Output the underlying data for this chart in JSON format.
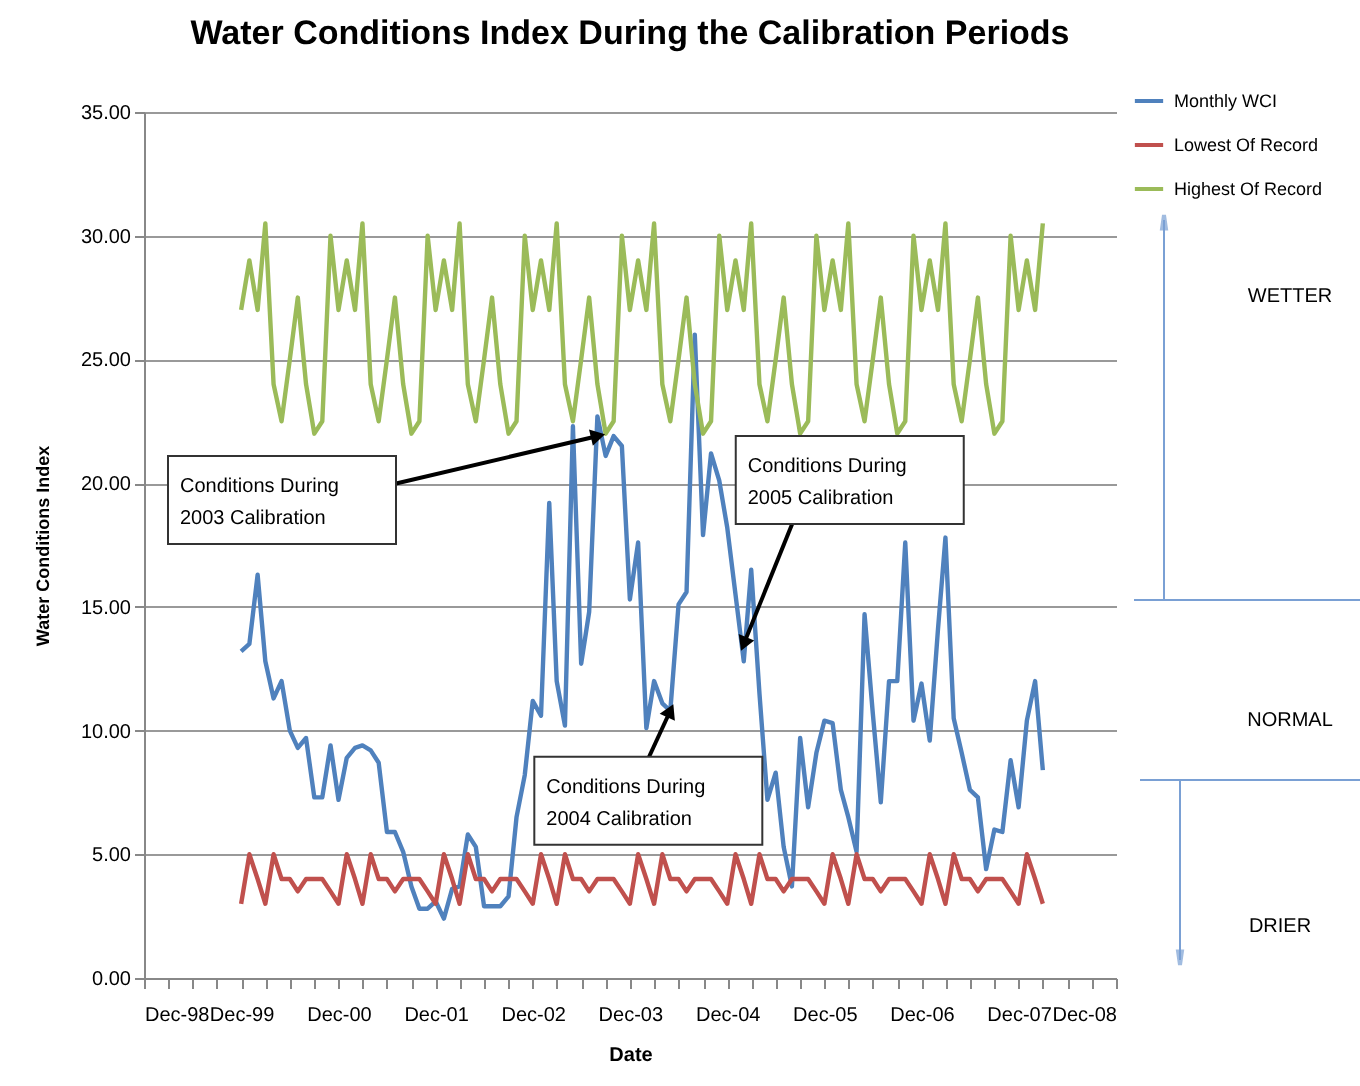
{
  "chart_data": {
    "type": "line",
    "title": "Water Conditions Index During the Calibration Periods",
    "xlabel": "Date",
    "ylabel": "Water Conditions Index",
    "x": [
      "1999-12",
      "2000-01",
      "2000-02",
      "2000-03",
      "2000-04",
      "2000-05",
      "2000-06",
      "2000-07",
      "2000-08",
      "2000-09",
      "2000-10",
      "2000-11",
      "2000-12",
      "2001-01",
      "2001-02",
      "2001-03",
      "2001-04",
      "2001-05",
      "2001-06",
      "2001-07",
      "2001-08",
      "2001-09",
      "2001-10",
      "2001-11",
      "2001-12",
      "2002-01",
      "2002-02",
      "2002-03",
      "2002-04",
      "2002-05",
      "2002-06",
      "2002-07",
      "2002-08",
      "2002-09",
      "2002-10",
      "2002-11",
      "2002-12",
      "2003-01",
      "2003-02",
      "2003-03",
      "2003-04",
      "2003-05",
      "2003-06",
      "2003-07",
      "2003-08",
      "2003-09",
      "2003-10",
      "2003-11",
      "2003-12",
      "2004-01",
      "2004-02",
      "2004-03",
      "2004-04",
      "2004-05",
      "2004-06",
      "2004-07",
      "2004-08",
      "2004-09",
      "2004-10",
      "2004-11",
      "2004-12",
      "2005-01",
      "2005-02",
      "2005-03",
      "2005-04",
      "2005-05",
      "2005-06",
      "2005-07",
      "2005-08",
      "2005-09",
      "2005-10",
      "2005-11",
      "2005-12",
      "2006-01",
      "2006-02",
      "2006-03",
      "2006-04",
      "2006-05",
      "2006-06",
      "2006-07",
      "2006-08",
      "2006-09",
      "2006-10",
      "2006-11",
      "2006-12",
      "2007-01",
      "2007-02",
      "2007-03",
      "2007-04",
      "2007-05",
      "2007-06",
      "2007-07",
      "2007-08",
      "2007-09",
      "2007-10",
      "2007-11",
      "2007-12",
      "2008-01",
      "2008-02",
      "2008-03"
    ],
    "series": [
      {
        "name": "Monthly WCI",
        "color": "#4f81bd",
        "values": [
          13.2,
          13.5,
          16.3,
          12.8,
          11.3,
          12.0,
          10.0,
          9.3,
          9.7,
          7.3,
          7.3,
          9.4,
          7.2,
          8.9,
          9.3,
          9.4,
          9.2,
          8.7,
          5.9,
          5.9,
          5.1,
          3.7,
          2.8,
          2.8,
          3.1,
          2.4,
          3.6,
          3.7,
          5.8,
          5.3,
          2.9,
          2.9,
          2.9,
          3.3,
          6.5,
          8.2,
          11.2,
          10.6,
          19.2,
          12.0,
          10.2,
          22.3,
          12.7,
          14.8,
          22.7,
          21.1,
          21.9,
          21.5,
          15.3,
          17.6,
          10.1,
          12.0,
          11.1,
          10.8,
          15.1,
          15.6,
          26.0,
          17.9,
          21.2,
          20.1,
          18.2,
          15.5,
          12.8,
          16.5,
          11.5,
          7.2,
          8.3,
          5.3,
          3.7,
          9.7,
          6.9,
          9.1,
          10.4,
          10.3,
          7.6,
          6.5,
          5.1,
          14.7,
          10.7,
          7.1,
          12.0,
          12.0,
          17.6,
          10.4,
          11.9,
          9.6,
          14.1,
          17.8,
          10.5,
          9.1,
          7.6,
          7.3,
          4.4,
          6.0,
          5.9,
          8.8,
          6.9,
          10.4,
          12.0,
          8.4
        ]
      },
      {
        "name": "Lowest Of Record",
        "color": "#c0504d",
        "values": [
          3,
          5,
          4,
          3,
          5,
          4,
          4,
          3.5,
          4,
          4,
          4,
          3.5,
          3,
          5,
          4,
          3,
          5,
          4,
          4,
          3.5,
          4,
          4,
          4,
          3.5,
          3,
          5,
          4,
          3,
          5,
          4,
          4,
          3.5,
          4,
          4,
          4,
          3.5,
          3,
          5,
          4,
          3,
          5,
          4,
          4,
          3.5,
          4,
          4,
          4,
          3.5,
          3,
          5,
          4,
          3,
          5,
          4,
          4,
          3.5,
          4,
          4,
          4,
          3.5,
          3,
          5,
          4,
          3,
          5,
          4,
          4,
          3.5,
          4,
          4,
          4,
          3.5,
          3,
          5,
          4,
          3,
          5,
          4,
          4,
          3.5,
          4,
          4,
          4,
          3.5,
          3,
          5,
          4,
          3,
          5,
          4,
          4,
          3.5,
          4,
          4,
          4,
          3.5,
          3,
          5,
          4,
          3
        ]
      },
      {
        "name": "Highest Of Record",
        "color": "#9bbb59",
        "values": [
          27,
          29,
          27,
          30.5,
          24,
          22.5,
          25,
          27.5,
          24,
          22,
          22.5,
          30,
          27,
          29,
          27,
          30.5,
          24,
          22.5,
          25,
          27.5,
          24,
          22,
          22.5,
          30,
          27,
          29,
          27,
          30.5,
          24,
          22.5,
          25,
          27.5,
          24,
          22,
          22.5,
          30,
          27,
          29,
          27,
          30.5,
          24,
          22.5,
          25,
          27.5,
          24,
          22,
          22.5,
          30,
          27,
          29,
          27,
          30.5,
          24,
          22.5,
          25,
          27.5,
          24,
          22,
          22.5,
          30,
          27,
          29,
          27,
          30.5,
          24,
          22.5,
          25,
          27.5,
          24,
          22,
          22.5,
          30,
          27,
          29,
          27,
          30.5,
          24,
          22.5,
          25,
          27.5,
          24,
          22,
          22.5,
          30,
          27,
          29,
          27,
          30.5,
          24,
          22.5,
          25,
          27.5,
          24,
          22,
          22.5,
          30,
          27,
          29,
          27,
          30.5
        ]
      }
    ],
    "xlim": [
      "1998-12",
      "2008-12"
    ],
    "xticks": [
      {
        "value": "1998-12",
        "label": "Dec-98"
      },
      {
        "value": "1999-03",
        "label": null
      },
      {
        "value": "1999-06",
        "label": null
      },
      {
        "value": "1999-09",
        "label": null
      },
      {
        "value": "1999-12",
        "label": "Dec-99"
      },
      {
        "value": "2000-03",
        "label": null
      },
      {
        "value": "2000-06",
        "label": null
      },
      {
        "value": "2000-09",
        "label": null
      },
      {
        "value": "2000-12",
        "label": "Dec-00"
      },
      {
        "value": "2001-03",
        "label": null
      },
      {
        "value": "2001-06",
        "label": null
      },
      {
        "value": "2001-09",
        "label": null
      },
      {
        "value": "2001-12",
        "label": "Dec-01"
      },
      {
        "value": "2002-03",
        "label": null
      },
      {
        "value": "2002-06",
        "label": null
      },
      {
        "value": "2002-09",
        "label": null
      },
      {
        "value": "2002-12",
        "label": "Dec-02"
      },
      {
        "value": "2003-03",
        "label": null
      },
      {
        "value": "2003-06",
        "label": null
      },
      {
        "value": "2003-09",
        "label": null
      },
      {
        "value": "2003-12",
        "label": "Dec-03"
      },
      {
        "value": "2004-03",
        "label": null
      },
      {
        "value": "2004-06",
        "label": null
      },
      {
        "value": "2004-09",
        "label": null
      },
      {
        "value": "2004-12",
        "label": "Dec-04"
      },
      {
        "value": "2005-03",
        "label": null
      },
      {
        "value": "2005-06",
        "label": null
      },
      {
        "value": "2005-09",
        "label": null
      },
      {
        "value": "2005-12",
        "label": "Dec-05"
      },
      {
        "value": "2006-03",
        "label": null
      },
      {
        "value": "2006-06",
        "label": null
      },
      {
        "value": "2006-09",
        "label": null
      },
      {
        "value": "2006-12",
        "label": "Dec-06"
      },
      {
        "value": "2007-03",
        "label": null
      },
      {
        "value": "2007-06",
        "label": null
      },
      {
        "value": "2007-09",
        "label": null
      },
      {
        "value": "2007-12",
        "label": "Dec-07"
      },
      {
        "value": "2008-03",
        "label": null
      },
      {
        "value": "2008-06",
        "label": null
      },
      {
        "value": "2008-09",
        "label": null
      },
      {
        "value": "2008-12",
        "label": "Dec-08"
      }
    ],
    "ylim": [
      0,
      35
    ],
    "yticks": [
      {
        "value": 0,
        "label": "0.00"
      },
      {
        "value": 5,
        "label": "5.00"
      },
      {
        "value": 10,
        "label": "10.00"
      },
      {
        "value": 15,
        "label": "15.00"
      },
      {
        "value": 20,
        "label": "20.00"
      },
      {
        "value": 25,
        "label": "25.00"
      },
      {
        "value": 30,
        "label": "30.00"
      },
      {
        "value": 35,
        "label": "35.00"
      }
    ],
    "grid": "y",
    "legend": "top right",
    "annotations": [
      "Conditions During\n2003 Calibration",
      {
        "text": "Conditions During\n2004 Calibration",
        "x": "2004-05",
        "y": 10.8
      },
      {
        "text": "Conditions During\n2005 Calibration",
        "x": "2005-02",
        "y": 13.5
      },
      "WETTER",
      "NORMAL",
      "DRIER"
    ]
  }
}
